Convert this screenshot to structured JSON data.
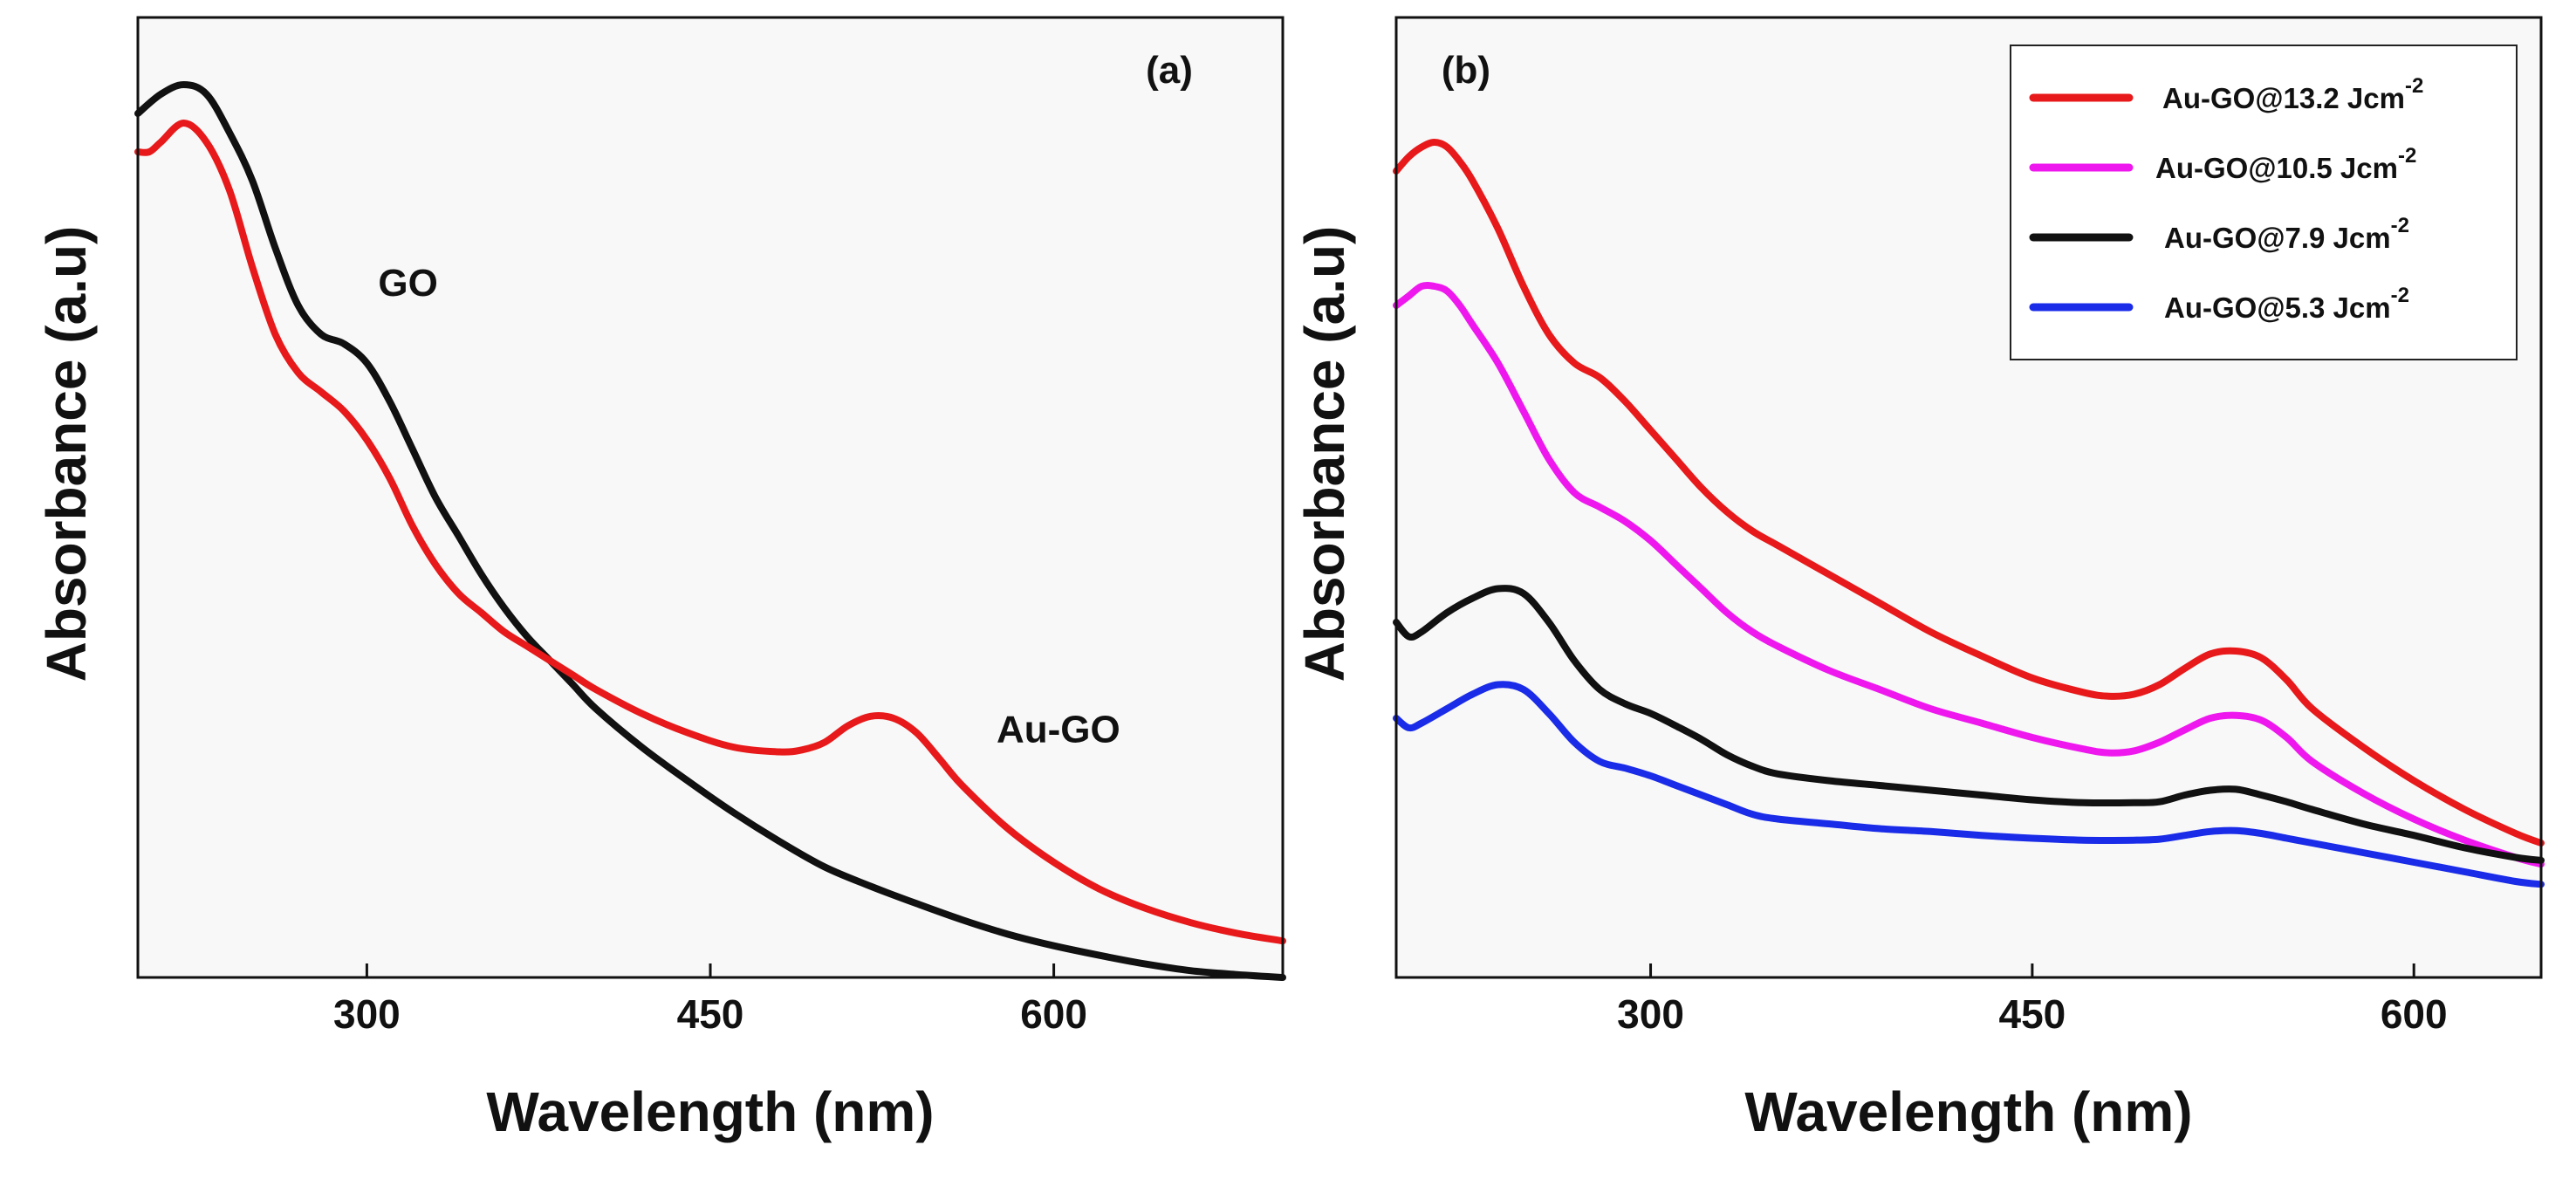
{
  "chart_data": [
    {
      "type": "line",
      "panel_label": "(a)",
      "xlabel": "Wavelength (nm)",
      "ylabel": "Absorbance (a.u)",
      "xlim": [
        200,
        700
      ],
      "ylim": [
        0,
        1
      ],
      "x_ticks": [
        300,
        450,
        600
      ],
      "y_ticks": [],
      "grid": false,
      "annotations": [
        {
          "text": "GO",
          "x": 318,
          "y": 0.71
        },
        {
          "text": "Au-GO",
          "x": 575,
          "y": 0.245
        }
      ],
      "series": [
        {
          "name": "GO",
          "color": "#111111",
          "x": [
            200,
            210,
            220,
            230,
            240,
            250,
            260,
            270,
            280,
            290,
            300,
            310,
            320,
            330,
            340,
            350,
            360,
            370,
            380,
            390,
            400,
            420,
            440,
            460,
            480,
            500,
            520,
            540,
            560,
            580,
            600,
            620,
            640,
            660,
            680,
            700
          ],
          "y": [
            0.9,
            0.92,
            0.93,
            0.92,
            0.88,
            0.83,
            0.76,
            0.7,
            0.67,
            0.66,
            0.64,
            0.6,
            0.55,
            0.5,
            0.46,
            0.42,
            0.385,
            0.355,
            0.33,
            0.305,
            0.28,
            0.24,
            0.205,
            0.172,
            0.142,
            0.115,
            0.095,
            0.077,
            0.06,
            0.045,
            0.033,
            0.023,
            0.014,
            0.007,
            0.003,
            0.0
          ]
        },
        {
          "name": "Au-GO",
          "color": "#e8191a",
          "x": [
            200,
            205,
            210,
            220,
            230,
            240,
            250,
            260,
            270,
            280,
            290,
            300,
            310,
            320,
            330,
            340,
            350,
            360,
            370,
            380,
            390,
            400,
            420,
            440,
            460,
            480,
            490,
            500,
            510,
            520,
            530,
            540,
            550,
            560,
            580,
            600,
            620,
            640,
            660,
            680,
            700
          ],
          "y": [
            0.86,
            0.86,
            0.87,
            0.89,
            0.87,
            0.82,
            0.74,
            0.67,
            0.63,
            0.61,
            0.59,
            0.56,
            0.52,
            0.47,
            0.43,
            0.4,
            0.38,
            0.36,
            0.345,
            0.33,
            0.315,
            0.3,
            0.275,
            0.255,
            0.24,
            0.235,
            0.237,
            0.245,
            0.262,
            0.272,
            0.27,
            0.255,
            0.228,
            0.2,
            0.155,
            0.12,
            0.092,
            0.072,
            0.057,
            0.046,
            0.038
          ]
        }
      ]
    },
    {
      "type": "line",
      "panel_label": "(b)",
      "xlabel": "Wavelength (nm)",
      "ylabel": "Absorbance (a.u)",
      "xlim": [
        200,
        650
      ],
      "ylim": [
        0,
        1
      ],
      "x_ticks": [
        300,
        450,
        600
      ],
      "y_ticks": [],
      "grid": false,
      "legend_position": "top-right",
      "series": [
        {
          "name": "Au-GO@13.2 Jcm",
          "unit_exponent": "-2",
          "color": "#e8191a",
          "x": [
            200,
            205,
            210,
            215,
            220,
            225,
            230,
            240,
            250,
            260,
            270,
            280,
            290,
            300,
            310,
            320,
            330,
            340,
            350,
            370,
            390,
            410,
            430,
            450,
            470,
            480,
            490,
            500,
            510,
            520,
            530,
            540,
            550,
            560,
            580,
            600,
            620,
            640,
            650
          ],
          "y": [
            0.84,
            0.855,
            0.865,
            0.87,
            0.865,
            0.85,
            0.83,
            0.78,
            0.72,
            0.67,
            0.64,
            0.625,
            0.6,
            0.57,
            0.54,
            0.51,
            0.485,
            0.465,
            0.45,
            0.42,
            0.39,
            0.36,
            0.335,
            0.312,
            0.297,
            0.293,
            0.295,
            0.305,
            0.322,
            0.337,
            0.34,
            0.333,
            0.31,
            0.28,
            0.24,
            0.205,
            0.175,
            0.15,
            0.14
          ]
        },
        {
          "name": "Au-GO@10.5 Jcm",
          "unit_exponent": "-2",
          "color": "#ee18ee",
          "x": [
            200,
            205,
            210,
            215,
            220,
            225,
            230,
            240,
            250,
            260,
            270,
            280,
            290,
            300,
            310,
            320,
            330,
            340,
            350,
            370,
            390,
            410,
            430,
            450,
            470,
            480,
            490,
            500,
            510,
            520,
            530,
            540,
            550,
            560,
            580,
            600,
            620,
            640,
            650
          ],
          "y": [
            0.7,
            0.71,
            0.72,
            0.72,
            0.715,
            0.7,
            0.68,
            0.64,
            0.59,
            0.54,
            0.505,
            0.49,
            0.475,
            0.455,
            0.43,
            0.405,
            0.38,
            0.36,
            0.345,
            0.32,
            0.3,
            0.28,
            0.265,
            0.25,
            0.238,
            0.234,
            0.236,
            0.245,
            0.258,
            0.27,
            0.273,
            0.268,
            0.25,
            0.225,
            0.192,
            0.165,
            0.143,
            0.125,
            0.118
          ]
        },
        {
          "name": "Au-GO@7.9 Jcm",
          "unit_exponent": "-2",
          "color": "#111111",
          "x": [
            200,
            205,
            210,
            220,
            230,
            240,
            250,
            260,
            270,
            280,
            290,
            300,
            310,
            320,
            330,
            340,
            350,
            370,
            390,
            410,
            430,
            450,
            470,
            490,
            500,
            510,
            520,
            530,
            540,
            550,
            560,
            580,
            600,
            620,
            640,
            650
          ],
          "y": [
            0.37,
            0.355,
            0.36,
            0.38,
            0.395,
            0.405,
            0.4,
            0.37,
            0.33,
            0.3,
            0.285,
            0.275,
            0.262,
            0.248,
            0.232,
            0.22,
            0.212,
            0.205,
            0.2,
            0.195,
            0.19,
            0.185,
            0.182,
            0.182,
            0.183,
            0.19,
            0.195,
            0.196,
            0.19,
            0.183,
            0.175,
            0.16,
            0.148,
            0.135,
            0.125,
            0.122
          ]
        },
        {
          "name": "Au-GO@5.3 Jcm",
          "unit_exponent": "-2",
          "color": "#1a2ce8",
          "x": [
            200,
            205,
            210,
            220,
            230,
            240,
            250,
            260,
            270,
            280,
            290,
            300,
            310,
            320,
            330,
            340,
            350,
            370,
            390,
            410,
            430,
            450,
            470,
            490,
            500,
            510,
            520,
            530,
            540,
            550,
            560,
            580,
            600,
            620,
            640,
            650
          ],
          "y": [
            0.27,
            0.26,
            0.265,
            0.28,
            0.295,
            0.305,
            0.3,
            0.275,
            0.245,
            0.225,
            0.218,
            0.21,
            0.2,
            0.19,
            0.18,
            0.17,
            0.165,
            0.16,
            0.155,
            0.152,
            0.148,
            0.145,
            0.143,
            0.143,
            0.144,
            0.148,
            0.152,
            0.153,
            0.15,
            0.145,
            0.14,
            0.13,
            0.12,
            0.11,
            0.1,
            0.097
          ]
        }
      ]
    }
  ]
}
